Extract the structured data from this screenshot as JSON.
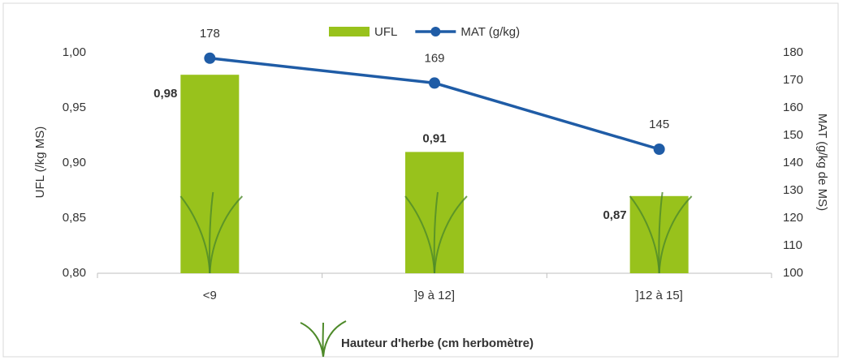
{
  "chart_data": {
    "type": "combo",
    "categories": [
      "<9",
      "]9 à 12]",
      "]12 à 15]"
    ],
    "series": [
      {
        "name": "UFL",
        "type": "bar",
        "color": "#98c21c",
        "values": [
          0.98,
          0.91,
          0.87
        ],
        "value_labels": [
          "0,98",
          "0,91",
          "0,87"
        ],
        "label_color": "#6f9a2c"
      },
      {
        "name": "MAT (g/kg)",
        "type": "line",
        "axis": "y2",
        "color": "#1f5ca6",
        "values": [
          178,
          169,
          145
        ],
        "label_color": "#4a82c2"
      }
    ],
    "ylabel": "UFL (/kg MS)",
    "y2label": "MAT (g/kg de MS)",
    "xlabel": "Hauteur d'herbe (cm herbomètre)",
    "ylim": [
      0.8,
      1.0
    ],
    "yticks": [
      {
        "value": 0.8,
        "label": "0,80"
      },
      {
        "value": 0.85,
        "label": "0,85"
      },
      {
        "value": 0.9,
        "label": "0,90"
      },
      {
        "value": 0.95,
        "label": "0,95"
      },
      {
        "value": 1.0,
        "label": "1,00"
      }
    ],
    "y2lim": [
      100,
      180
    ],
    "y2ticks": [
      100,
      110,
      120,
      130,
      140,
      150,
      160,
      170,
      180
    ],
    "legend": "top"
  }
}
